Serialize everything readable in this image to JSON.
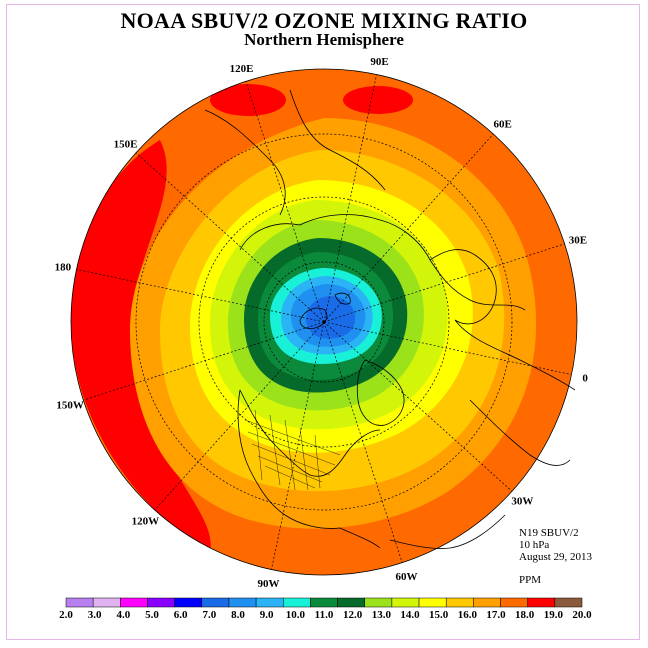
{
  "title": "NOAA SBUV/2 OZONE MIXING RATIO",
  "subtitle": "Northern Hemisphere",
  "longitude_labels": [
    {
      "text": "120E",
      "lon": 120
    },
    {
      "text": "90E",
      "lon": 90
    },
    {
      "text": "60E",
      "lon": 60
    },
    {
      "text": "30E",
      "lon": 30
    },
    {
      "text": "0",
      "lon": 0
    },
    {
      "text": "30W",
      "lon": -30
    },
    {
      "text": "60W",
      "lon": -60
    },
    {
      "text": "90W",
      "lon": -90
    },
    {
      "text": "120W",
      "lon": -120
    },
    {
      "text": "150W",
      "lon": -150
    },
    {
      "text": "180",
      "lon": 180
    },
    {
      "text": "150E",
      "lon": 150
    }
  ],
  "info": {
    "instrument": "N19 SBUV/2",
    "level": "10 hPa",
    "date": "August 29, 2013"
  },
  "units": "PPM",
  "colorbar": {
    "labels": [
      "2.0",
      "3.0",
      "4.0",
      "5.0",
      "6.0",
      "7.0",
      "8.0",
      "9.0",
      "10.0",
      "11.0",
      "12.0",
      "13.0",
      "14.0",
      "15.0",
      "16.0",
      "17.0",
      "18.0",
      "19.0",
      "20.0"
    ],
    "colors": [
      "#b77ff0",
      "#e0b3f0",
      "#ff00ff",
      "#8a00ff",
      "#0000ff",
      "#1a6be8",
      "#1f90f0",
      "#2ab3f5",
      "#19f0d8",
      "#0a8a3a",
      "#056a2a",
      "#9be21a",
      "#d2f50a",
      "#ffff00",
      "#ffc800",
      "#ffa000",
      "#ff6a00",
      "#ff0000",
      "#8b5a3c"
    ]
  },
  "map": {
    "projection": "polar-stereographic",
    "hemisphere": "north",
    "contour_colors": {
      "outer": "#ff6a00",
      "c17": "#ffa000",
      "c16": "#ffc800",
      "c15": "#ffff00",
      "c14": "#d2f50a",
      "c13": "#9be21a",
      "c12": "#056a2a",
      "c11": "#0a8a3a",
      "c10": "#19f0d8",
      "c9": "#2ab3f5",
      "c8": "#1f90f0",
      "c7": "#1a6be8",
      "red": "#ff0000"
    }
  }
}
